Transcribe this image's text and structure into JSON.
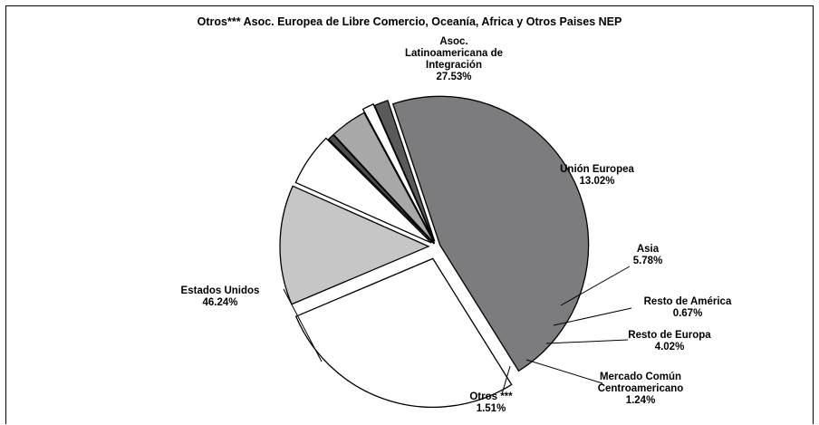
{
  "chart_data": {
    "type": "pie",
    "title": "Otros*** Asoc. Europea de Libre Comercio, Oceanía, Africa y Otros Paises NEP",
    "slices": [
      {
        "label": [
          "Asoc.",
          "Latinoamericana  de",
          "Integración"
        ],
        "value_text": "27.53%",
        "value": 27.53,
        "color": "#ffffff"
      },
      {
        "label": [
          "Unión Europea"
        ],
        "value_text": "13.02%",
        "value": 13.02,
        "color": "#c6c6c6"
      },
      {
        "label": [
          "Asia"
        ],
        "value_text": "5.78%",
        "value": 5.78,
        "color": "#ffffff"
      },
      {
        "label": [
          "Resto de América"
        ],
        "value_text": "0.67%",
        "value": 0.67,
        "color": "#4d4d4d"
      },
      {
        "label": [
          "Resto de Europa"
        ],
        "value_text": "4.02%",
        "value": 4.02,
        "color": "#a8a8a8"
      },
      {
        "label": [
          "Mercado Común",
          "Centroamericano"
        ],
        "value_text": "1.24%",
        "value": 1.24,
        "color": "#ffffff"
      },
      {
        "label": [
          "Otros ***"
        ],
        "value_text": "1.51%",
        "value": 1.51,
        "color": "#5a5a5a"
      },
      {
        "label": [
          "Estados Unidos"
        ],
        "value_text": "46.24%",
        "value": 46.24,
        "color": "#7c7c7e"
      }
    ],
    "legend": "none"
  }
}
